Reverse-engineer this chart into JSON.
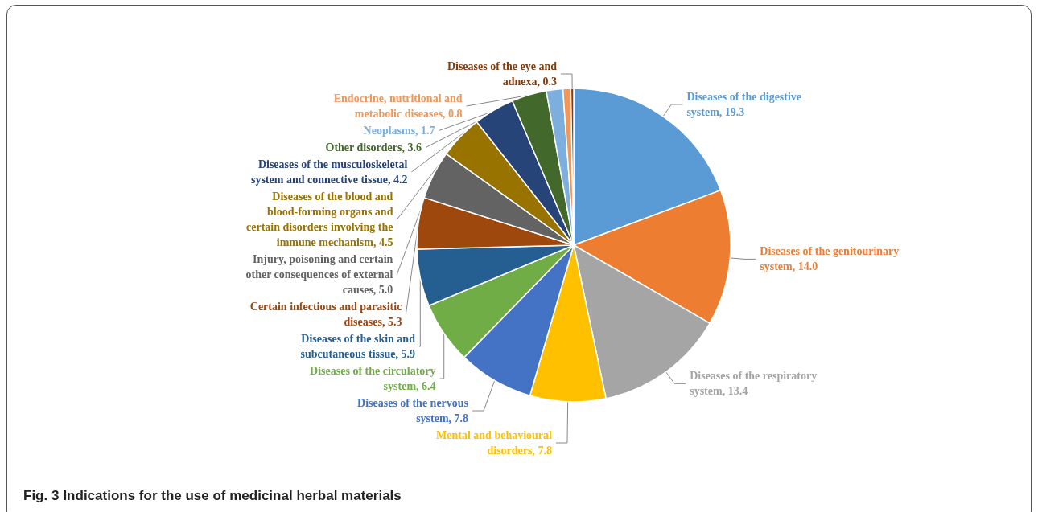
{
  "chart_data": {
    "type": "pie",
    "title": "Fig. 3",
    "subtitle": "Indications for the use of medicinal herbal materials",
    "categories": [
      "Diseases of the digestive system",
      "Diseases of the genitourinary system",
      "Diseases of the respiratory system",
      "Mental and behavioural disorders",
      "Diseases of the nervous system",
      "Diseases of the circulatory system",
      "Diseases of the skin and subcutaneous tissue",
      "Certain infectious and parasitic diseases",
      "Injury, poisoning and certain other consequences of external causes",
      "Diseases of the blood and blood-forming organs and certain disorders involving the immune mechanism",
      "Diseases of the musculoskeletal system and connective tissue",
      "Other disorders",
      "Neoplasms",
      "Endocrine, nutritional and metabolic diseases",
      "Diseases of the eye and adnexa"
    ],
    "values": [
      19.3,
      14.0,
      13.4,
      7.8,
      7.8,
      6.4,
      5.9,
      5.3,
      5.0,
      4.5,
      4.2,
      3.6,
      1.7,
      0.8,
      0.3
    ],
    "value_labels": [
      "19.3",
      "14.0",
      "13.4",
      "7.8",
      "7.8",
      "6.4",
      "5.9",
      "5.3",
      "5.0",
      "4.5",
      "4.2",
      "3.6",
      "1.7",
      "0.8",
      "0.3"
    ],
    "colors": [
      "#5b9bd5",
      "#ed7d31",
      "#a5a5a5",
      "#ffc000",
      "#4472c4",
      "#70ad47",
      "#255e91",
      "#9e480e",
      "#636363",
      "#997300",
      "#264478",
      "#43682b",
      "#7cafdd",
      "#f1975a",
      "#843c0c"
    ],
    "legend": false
  }
}
